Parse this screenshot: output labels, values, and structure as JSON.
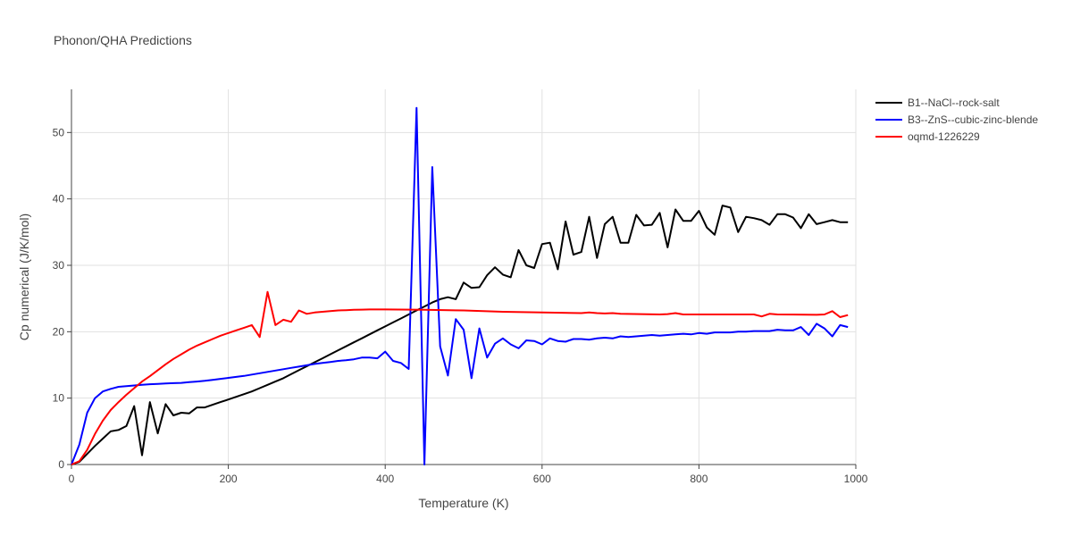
{
  "chart_data": {
    "type": "line",
    "title": "Phonon/QHA Predictions",
    "xlabel": "Temperature (K)",
    "ylabel": "Cp numerical (J/K/mol)",
    "xlim": [
      0,
      1000
    ],
    "ylim": [
      0,
      56.5
    ],
    "xticks": [
      0,
      200,
      400,
      600,
      800,
      1000
    ],
    "yticks": [
      0,
      10,
      20,
      30,
      40,
      50
    ],
    "grid": true,
    "legend_position": "top-right",
    "series": [
      {
        "name": "B1--NaCl--rock-salt",
        "color": "#000000",
        "x": [
          0,
          10,
          20,
          30,
          40,
          50,
          60,
          70,
          80,
          90,
          100,
          110,
          120,
          130,
          140,
          150,
          160,
          170,
          180,
          190,
          200,
          210,
          220,
          230,
          240,
          250,
          260,
          270,
          280,
          290,
          300,
          310,
          320,
          330,
          340,
          350,
          360,
          370,
          380,
          390,
          400,
          410,
          420,
          430,
          440,
          450,
          460,
          470,
          480,
          490,
          500,
          510,
          520,
          530,
          540,
          550,
          560,
          570,
          580,
          590,
          600,
          610,
          620,
          630,
          640,
          650,
          660,
          670,
          680,
          690,
          700,
          710,
          720,
          730,
          740,
          750,
          760,
          770,
          780,
          790,
          800,
          810,
          820,
          830,
          840,
          850,
          860,
          870,
          880,
          890,
          900,
          910,
          920,
          930,
          940,
          950,
          960,
          970,
          980,
          990
        ],
        "y": [
          0,
          0.4,
          1.6,
          2.8,
          3.9,
          5.0,
          5.2,
          5.8,
          8.8,
          1.4,
          9.4,
          4.7,
          9.1,
          7.4,
          7.8,
          7.7,
          8.6,
          8.6,
          9.0,
          9.4,
          9.8,
          10.2,
          10.6,
          11.0,
          11.5,
          12.0,
          12.5,
          13.0,
          13.6,
          14.2,
          14.8,
          15.4,
          16.0,
          16.6,
          17.2,
          17.8,
          18.4,
          19.0,
          19.6,
          20.2,
          20.8,
          21.4,
          22.0,
          22.6,
          23.2,
          23.8,
          24.4,
          24.9,
          25.2,
          24.9,
          27.4,
          26.6,
          26.7,
          28.5,
          29.7,
          28.6,
          28.2,
          32.3,
          30.0,
          29.6,
          33.2,
          33.4,
          29.4,
          36.6,
          31.6,
          32.0,
          37.3,
          31.1,
          36.2,
          37.3,
          33.4,
          33.4,
          37.6,
          36.0,
          36.1,
          37.9,
          32.7,
          38.4,
          36.7,
          36.7,
          38.2,
          35.7,
          34.6,
          39.0,
          38.7,
          35.0,
          37.3,
          37.1,
          36.8,
          36.1,
          37.7,
          37.7,
          37.2,
          35.6,
          37.7,
          36.2,
          36.5,
          36.8,
          36.5,
          36.5
        ]
      },
      {
        "name": "B3--ZnS--cubic-zinc-blende",
        "color": "#0000ff",
        "x": [
          0,
          10,
          20,
          30,
          40,
          50,
          60,
          70,
          80,
          90,
          100,
          110,
          120,
          130,
          140,
          150,
          160,
          170,
          180,
          190,
          200,
          210,
          220,
          230,
          240,
          250,
          260,
          270,
          280,
          290,
          300,
          310,
          320,
          330,
          340,
          350,
          360,
          370,
          380,
          390,
          400,
          410,
          420,
          430,
          440,
          450,
          460,
          470,
          480,
          490,
          500,
          510,
          520,
          530,
          540,
          550,
          560,
          570,
          580,
          590,
          600,
          610,
          620,
          630,
          640,
          650,
          660,
          670,
          680,
          690,
          700,
          710,
          720,
          730,
          740,
          750,
          760,
          770,
          780,
          790,
          800,
          810,
          820,
          830,
          840,
          850,
          860,
          870,
          880,
          890,
          900,
          910,
          920,
          930,
          940,
          950,
          960,
          970,
          980,
          990
        ],
        "y": [
          0,
          3.0,
          7.8,
          10.0,
          11.0,
          11.4,
          11.7,
          11.8,
          11.9,
          12.0,
          12.1,
          12.15,
          12.2,
          12.25,
          12.3,
          12.4,
          12.5,
          12.6,
          12.75,
          12.9,
          13.05,
          13.2,
          13.35,
          13.55,
          13.75,
          13.95,
          14.15,
          14.35,
          14.55,
          14.75,
          14.95,
          15.15,
          15.3,
          15.45,
          15.6,
          15.7,
          15.85,
          16.1,
          16.1,
          16.0,
          17.0,
          15.6,
          15.3,
          14.4,
          53.7,
          0,
          44.8,
          17.8,
          13.4,
          21.9,
          20.3,
          13.0,
          20.5,
          16.1,
          18.2,
          19.0,
          18.1,
          17.5,
          18.7,
          18.6,
          18.1,
          19.0,
          18.6,
          18.5,
          18.9,
          18.9,
          18.8,
          19.0,
          19.1,
          19.0,
          19.3,
          19.2,
          19.3,
          19.4,
          19.5,
          19.4,
          19.5,
          19.6,
          19.7,
          19.6,
          19.8,
          19.7,
          19.9,
          19.9,
          19.9,
          20.0,
          20.0,
          20.1,
          20.1,
          20.1,
          20.3,
          20.2,
          20.2,
          20.7,
          19.5,
          21.2,
          20.5,
          19.3,
          21.0,
          20.7
        ]
      },
      {
        "name": "oqmd-1226229",
        "color": "#ff0000",
        "x": [
          0,
          10,
          20,
          30,
          40,
          50,
          60,
          70,
          80,
          90,
          100,
          110,
          120,
          130,
          140,
          150,
          160,
          170,
          180,
          190,
          200,
          210,
          220,
          230,
          240,
          250,
          260,
          270,
          280,
          290,
          300,
          310,
          320,
          330,
          340,
          350,
          360,
          370,
          380,
          390,
          400,
          450,
          500,
          550,
          600,
          650,
          660,
          670,
          680,
          690,
          700,
          750,
          760,
          770,
          780,
          790,
          800,
          850,
          870,
          880,
          890,
          900,
          950,
          960,
          970,
          980,
          990
        ],
        "y": [
          0,
          0.5,
          2.2,
          4.6,
          6.6,
          8.2,
          9.4,
          10.5,
          11.5,
          12.5,
          13.3,
          14.2,
          15.1,
          15.9,
          16.6,
          17.3,
          17.9,
          18.4,
          18.9,
          19.4,
          19.8,
          20.2,
          20.6,
          21.0,
          19.2,
          26.0,
          21.0,
          21.8,
          21.5,
          23.2,
          22.7,
          22.9,
          23.0,
          23.1,
          23.2,
          23.25,
          23.3,
          23.32,
          23.35,
          23.36,
          23.36,
          23.3,
          23.2,
          23.0,
          22.9,
          22.8,
          22.9,
          22.8,
          22.75,
          22.8,
          22.7,
          22.6,
          22.65,
          22.8,
          22.6,
          22.6,
          22.6,
          22.6,
          22.6,
          22.3,
          22.7,
          22.6,
          22.55,
          22.6,
          23.1,
          22.2,
          22.5
        ]
      }
    ]
  }
}
